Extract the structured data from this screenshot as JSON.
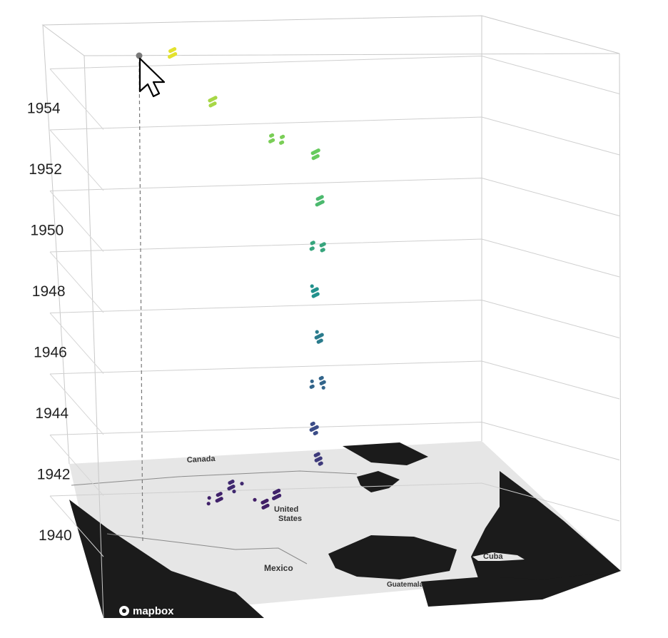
{
  "chart_data": {
    "type": "scatter",
    "title": "",
    "xlabel": "",
    "ylabel": "",
    "z_axis": {
      "ticks": [
        "1940",
        "1942",
        "1944",
        "1946",
        "1948",
        "1950",
        "1952",
        "1954"
      ],
      "range": [
        1939.5,
        1956.5
      ]
    },
    "grid": true,
    "colorscale": "viridis",
    "points": [
      {
        "lon": -95,
        "year": 1941.0
      },
      {
        "lon": -92,
        "year": 1941.3
      },
      {
        "lon": -100,
        "year": 1941.6
      },
      {
        "lon": -104,
        "year": 1941.2
      },
      {
        "lon": -84,
        "year": 1942.5
      },
      {
        "lon": -84,
        "year": 1943.5
      },
      {
        "lon": -84,
        "year": 1945.0
      },
      {
        "lon": -84,
        "year": 1946.5
      },
      {
        "lon": -84,
        "year": 1948.0
      },
      {
        "lon": -84,
        "year": 1949.5
      },
      {
        "lon": -84,
        "year": 1951.0
      },
      {
        "lon": -84,
        "year": 1952.5
      },
      {
        "lon": -92,
        "year": 1953.0
      },
      {
        "lon": -105,
        "year": 1954.2
      },
      {
        "lon": -112,
        "year": 1955.8
      }
    ],
    "highlighted_point": {
      "lon": -113,
      "year": 1955.8
    }
  },
  "map": {
    "labels": {
      "canada": "Canada",
      "us1": "United",
      "us2": "States",
      "mexico": "Mexico",
      "cuba": "Cuba",
      "guatemala": "Guatemala"
    },
    "attribution": "mapbox",
    "colors": {
      "land": "#e6e6e6",
      "water": "#1b1b1b"
    }
  },
  "cursor": {
    "icon": "arrow-pointer-icon"
  }
}
